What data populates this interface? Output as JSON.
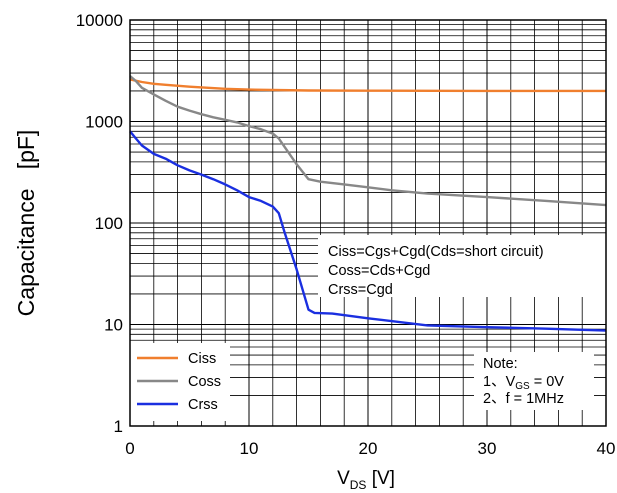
{
  "chart_data": {
    "type": "line",
    "title": "",
    "ylabel": "Capacitance   [pF]",
    "xlabel": {
      "main": "V",
      "sub": "DS",
      "unit": " [V]"
    },
    "xlim": [
      0,
      40
    ],
    "ylim": [
      1,
      10000
    ],
    "yscale": "log",
    "grid": true,
    "x_ticks": [
      0,
      10,
      20,
      30,
      40
    ],
    "x_tick_labels": [
      "0",
      "10",
      "20",
      "30",
      "40"
    ],
    "y_ticks": [
      1,
      10,
      100,
      1000,
      10000
    ],
    "y_tick_labels": [
      "1",
      "10",
      "100",
      "1000",
      "10000"
    ],
    "legend_position": "bottom-left",
    "series": [
      {
        "name": "Ciss",
        "color": "#f07f2e",
        "points": [
          [
            0,
            2600
          ],
          [
            1,
            2450
          ],
          [
            2,
            2350
          ],
          [
            3,
            2300
          ],
          [
            5,
            2200
          ],
          [
            8,
            2100
          ],
          [
            10,
            2060
          ],
          [
            15,
            2020
          ],
          [
            20,
            2010
          ],
          [
            30,
            2000
          ],
          [
            40,
            2000
          ]
        ]
      },
      {
        "name": "Coss",
        "color": "#888888",
        "points": [
          [
            0,
            2800
          ],
          [
            0.5,
            2500
          ],
          [
            1,
            2150
          ],
          [
            2,
            1850
          ],
          [
            3,
            1600
          ],
          [
            4,
            1400
          ],
          [
            5,
            1280
          ],
          [
            6,
            1180
          ],
          [
            7,
            1100
          ],
          [
            8,
            1040
          ],
          [
            9,
            980
          ],
          [
            10,
            900
          ],
          [
            11,
            840
          ],
          [
            12,
            760
          ],
          [
            12.5,
            680
          ],
          [
            13,
            560
          ],
          [
            14,
            380
          ],
          [
            15,
            270
          ],
          [
            16,
            255
          ],
          [
            18,
            240
          ],
          [
            20,
            225
          ],
          [
            22,
            210
          ],
          [
            25,
            195
          ],
          [
            30,
            180
          ],
          [
            35,
            165
          ],
          [
            40,
            150
          ]
        ]
      },
      {
        "name": "Crss",
        "color": "#1a2fe0",
        "points": [
          [
            0,
            800
          ],
          [
            0.5,
            680
          ],
          [
            1,
            580
          ],
          [
            2,
            480
          ],
          [
            3,
            430
          ],
          [
            4,
            370
          ],
          [
            5,
            330
          ],
          [
            6,
            300
          ],
          [
            7,
            270
          ],
          [
            8,
            240
          ],
          [
            9,
            210
          ],
          [
            10,
            180
          ],
          [
            11,
            165
          ],
          [
            12,
            145
          ],
          [
            12.5,
            125
          ],
          [
            13,
            80
          ],
          [
            14,
            35
          ],
          [
            15,
            14
          ],
          [
            15.5,
            13
          ],
          [
            17,
            12.8
          ],
          [
            20,
            11.5
          ],
          [
            25,
            9.8
          ],
          [
            30,
            9.4
          ],
          [
            35,
            9.1
          ],
          [
            40,
            8.7
          ]
        ]
      }
    ],
    "annotation": [
      "Ciss=Cgs+Cgd(Cds=short circuit)",
      "Coss=Cds+Cgd",
      "Crss=Cgd"
    ],
    "note": {
      "title": "Note:",
      "line1": {
        "prefix": "1、V",
        "sub": "GS",
        "suffix": " = 0V"
      },
      "line2": "2、f = 1MHz"
    }
  }
}
